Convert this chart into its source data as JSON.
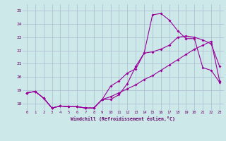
{
  "xlabel": "Windchill (Refroidissement éolien,°C)",
  "background_color": "#cce8e8",
  "grid_color": "#aabbd0",
  "line_color": "#990099",
  "xlim": [
    -0.5,
    23.5
  ],
  "ylim": [
    17.5,
    25.5
  ],
  "yticks": [
    18,
    19,
    20,
    21,
    22,
    23,
    24,
    25
  ],
  "xticks": [
    0,
    1,
    2,
    3,
    4,
    5,
    6,
    7,
    8,
    9,
    10,
    11,
    12,
    13,
    14,
    15,
    16,
    17,
    18,
    19,
    20,
    21,
    22,
    23
  ],
  "line1_x": [
    0,
    1,
    2,
    3,
    4,
    5,
    6,
    7,
    8,
    9,
    10,
    11,
    12,
    13,
    14,
    15,
    16,
    17,
    18,
    19,
    20,
    21,
    22,
    23
  ],
  "line1_y": [
    18.8,
    18.9,
    18.4,
    17.65,
    17.8,
    17.75,
    17.75,
    17.65,
    17.65,
    18.3,
    18.3,
    18.65,
    19.5,
    20.8,
    21.8,
    24.7,
    24.8,
    24.3,
    23.5,
    22.9,
    22.9,
    20.7,
    20.5,
    19.6
  ],
  "line2_x": [
    0,
    1,
    2,
    3,
    4,
    5,
    6,
    7,
    8,
    9,
    10,
    11,
    12,
    13,
    14,
    15,
    16,
    17,
    18,
    19,
    20,
    21,
    22,
    23
  ],
  "line2_y": [
    18.8,
    18.9,
    18.4,
    17.65,
    17.8,
    17.75,
    17.75,
    17.65,
    17.65,
    18.3,
    19.3,
    19.7,
    20.3,
    20.6,
    21.8,
    21.9,
    22.1,
    22.4,
    23.0,
    23.1,
    23.0,
    22.8,
    22.5,
    20.8
  ],
  "line3_x": [
    0,
    1,
    2,
    3,
    4,
    5,
    6,
    7,
    8,
    9,
    10,
    11,
    12,
    13,
    14,
    15,
    16,
    17,
    18,
    19,
    20,
    21,
    22,
    23
  ],
  "line3_y": [
    18.8,
    18.9,
    18.4,
    17.65,
    17.8,
    17.75,
    17.75,
    17.65,
    17.65,
    18.3,
    18.5,
    18.8,
    19.1,
    19.4,
    19.8,
    20.1,
    20.5,
    20.9,
    21.3,
    21.7,
    22.1,
    22.4,
    22.7,
    19.7
  ]
}
